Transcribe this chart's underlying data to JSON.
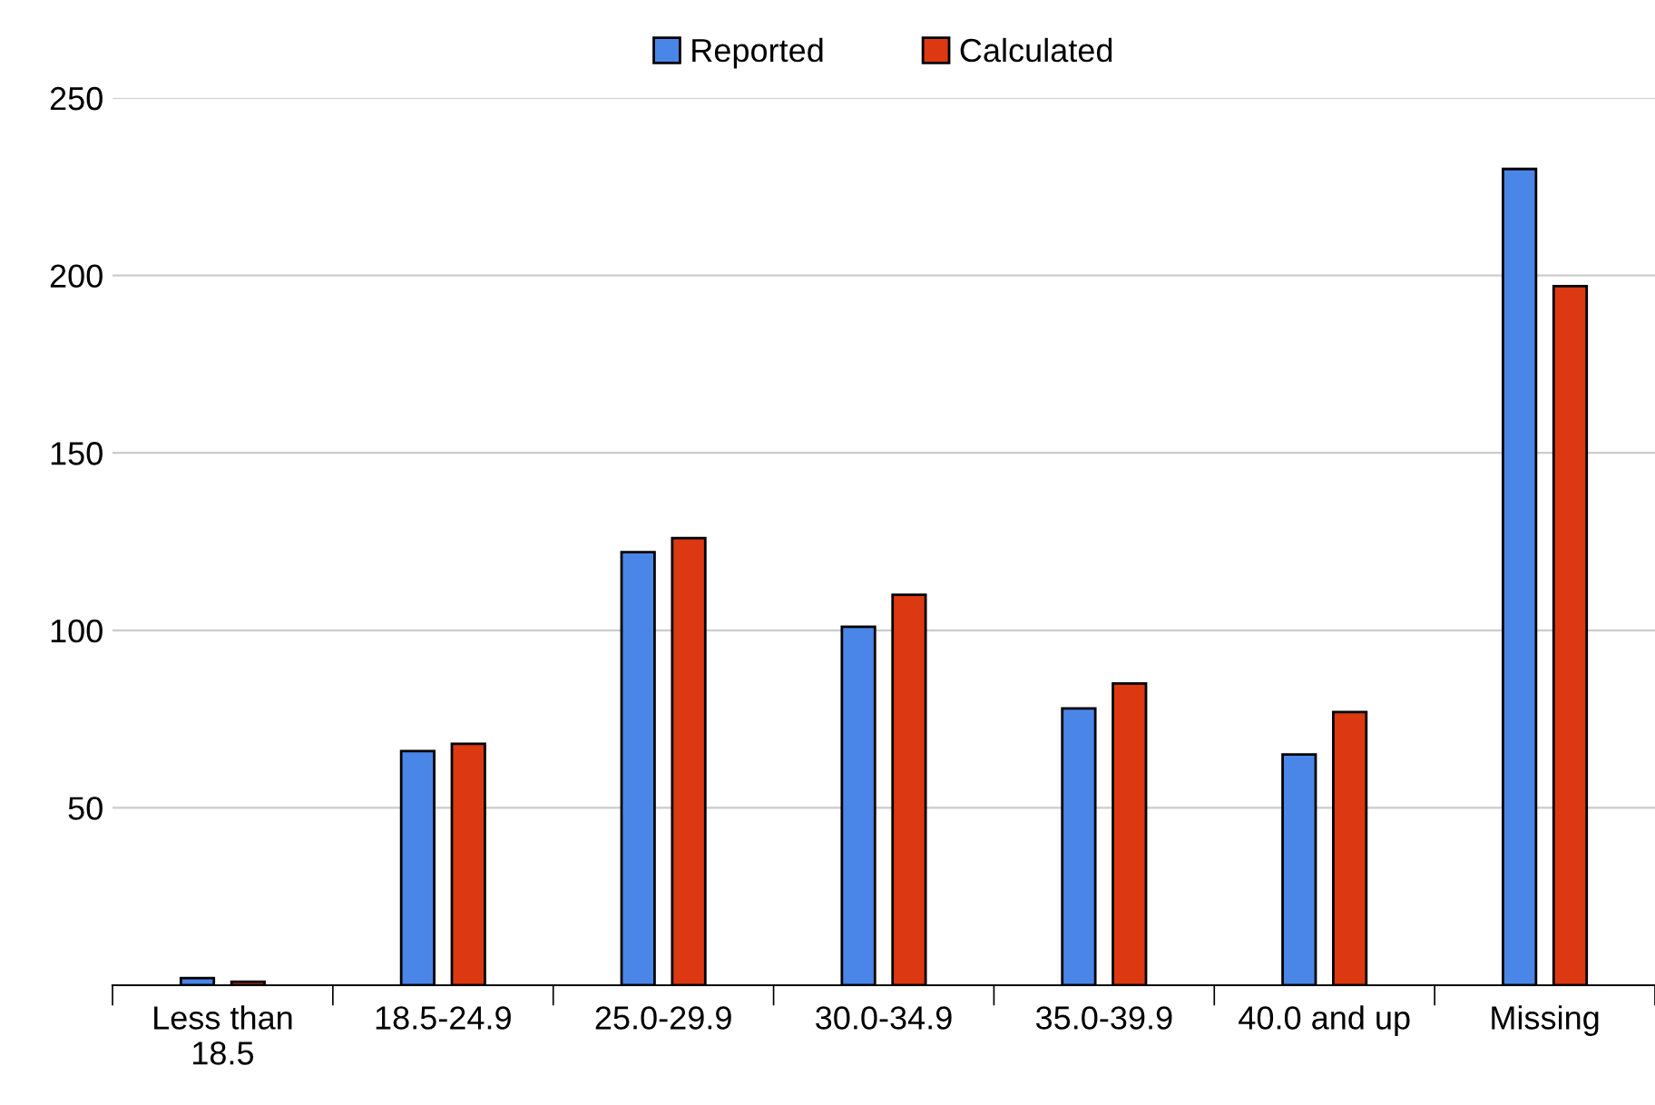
{
  "chart_data": {
    "type": "bar",
    "categories": [
      "Less than\n18.5",
      "18.5-24.9",
      "25.0-29.9",
      "30.0-34.9",
      "35.0-39.9",
      "40.0 and up",
      "Missing"
    ],
    "series": [
      {
        "name": "Reported",
        "color": "#4a86e8",
        "values": [
          2,
          66,
          122,
          101,
          78,
          65,
          230
        ]
      },
      {
        "name": "Calculated",
        "color": "#dc3912",
        "values": [
          1,
          68,
          126,
          110,
          85,
          77,
          197
        ]
      }
    ],
    "ylim": [
      0,
      250
    ],
    "yticks": [
      50,
      100,
      150,
      200,
      250
    ],
    "grid": "y",
    "legend": "top"
  }
}
